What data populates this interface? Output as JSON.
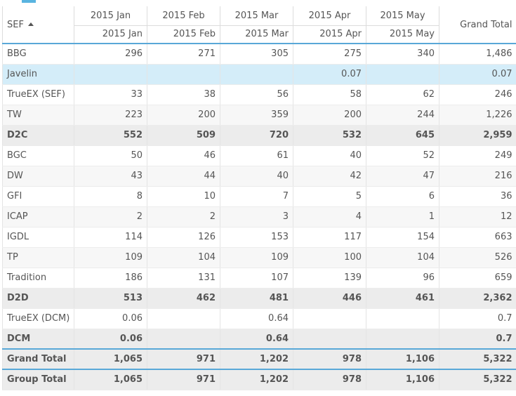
{
  "pivot": {
    "row_header": "SEF",
    "grand_total_header": "Grand Total",
    "columns": [
      {
        "top": "2015 Jan",
        "sub": "2015 Jan"
      },
      {
        "top": "2015 Feb",
        "sub": "2015 Feb"
      },
      {
        "top": "2015 Mar",
        "sub": "2015 Mar"
      },
      {
        "top": "2015 Apr",
        "sub": "2015 Apr"
      },
      {
        "top": "2015 May",
        "sub": "2015 May"
      }
    ],
    "rows": [
      {
        "label": "BBG",
        "values": [
          "296",
          "271",
          "305",
          "275",
          "340"
        ],
        "total": "1,486",
        "kind": "odd"
      },
      {
        "label": "Javelin",
        "values": [
          "",
          "",
          "",
          "0.07",
          ""
        ],
        "total": "0.07",
        "kind": "selected"
      },
      {
        "label": "TrueEX (SEF)",
        "values": [
          "33",
          "38",
          "56",
          "58",
          "62"
        ],
        "total": "246",
        "kind": "odd"
      },
      {
        "label": "TW",
        "values": [
          "223",
          "200",
          "359",
          "200",
          "244"
        ],
        "total": "1,226",
        "kind": "even"
      },
      {
        "label": "D2C",
        "values": [
          "552",
          "509",
          "720",
          "532",
          "645"
        ],
        "total": "2,959",
        "kind": "subtotal"
      },
      {
        "label": "BGC",
        "values": [
          "50",
          "46",
          "61",
          "40",
          "52"
        ],
        "total": "249",
        "kind": "odd"
      },
      {
        "label": "DW",
        "values": [
          "43",
          "44",
          "40",
          "42",
          "47"
        ],
        "total": "216",
        "kind": "even"
      },
      {
        "label": "GFI",
        "values": [
          "8",
          "10",
          "7",
          "5",
          "6"
        ],
        "total": "36",
        "kind": "odd"
      },
      {
        "label": "ICAP",
        "values": [
          "2",
          "2",
          "3",
          "4",
          "1"
        ],
        "total": "12",
        "kind": "even"
      },
      {
        "label": "IGDL",
        "values": [
          "114",
          "126",
          "153",
          "117",
          "154"
        ],
        "total": "663",
        "kind": "odd"
      },
      {
        "label": "TP",
        "values": [
          "109",
          "104",
          "109",
          "100",
          "104"
        ],
        "total": "526",
        "kind": "even"
      },
      {
        "label": "Tradition",
        "values": [
          "186",
          "131",
          "107",
          "139",
          "96"
        ],
        "total": "659",
        "kind": "odd"
      },
      {
        "label": "D2D",
        "values": [
          "513",
          "462",
          "481",
          "446",
          "461"
        ],
        "total": "2,362",
        "kind": "subtotal"
      },
      {
        "label": "TrueEX (DCM)",
        "values": [
          "0.06",
          "",
          "0.64",
          "",
          ""
        ],
        "total": "0.7",
        "kind": "odd"
      },
      {
        "label": "DCM",
        "values": [
          "0.06",
          "",
          "0.64",
          "",
          ""
        ],
        "total": "0.7",
        "kind": "subtotal"
      },
      {
        "label": "Grand Total",
        "values": [
          "1,065",
          "971",
          "1,202",
          "978",
          "1,106"
        ],
        "total": "5,322",
        "kind": "total"
      },
      {
        "label": "Group Total",
        "values": [
          "1,065",
          "971",
          "1,202",
          "978",
          "1,106"
        ],
        "total": "5,322",
        "kind": "total"
      }
    ]
  },
  "colors": {
    "accent": "#59a8d8",
    "selected_row": "#d4edf9",
    "subtotal_row": "#ececec",
    "alt_row": "#f7f7f7"
  }
}
